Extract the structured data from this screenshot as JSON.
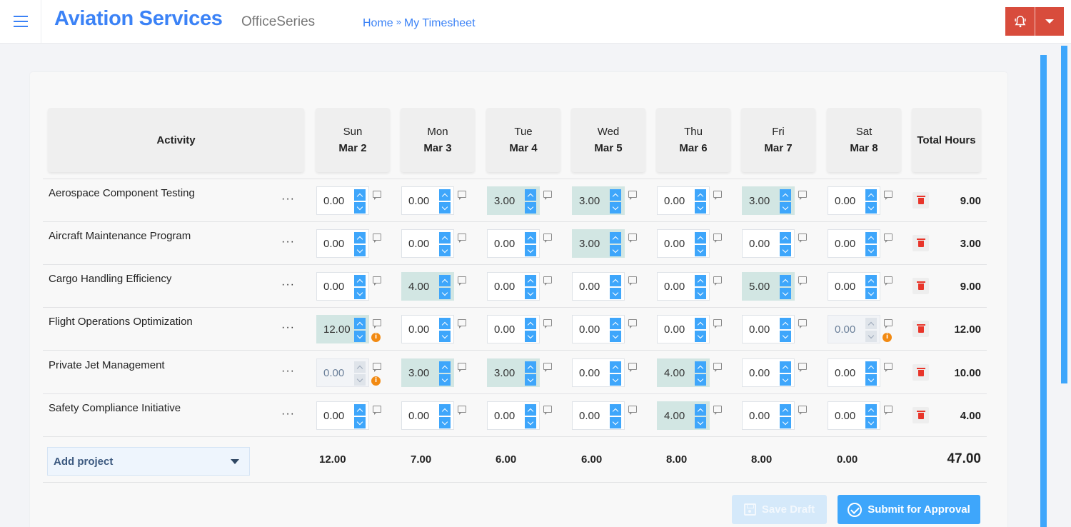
{
  "header": {
    "menu_icon": "hamburger-icon",
    "brand": "Aviation Services",
    "subbrand": "OfficeSeries",
    "breadcrumb": {
      "home": "Home",
      "separator": "»",
      "current": "My Timesheet"
    },
    "alert_icon": "bell-alert-icon",
    "dropdown_icon": "caret-down-icon",
    "alert_color": "#d84c3c"
  },
  "table": {
    "activity_header": "Activity",
    "total_header": "Total Hours",
    "days": [
      {
        "day": "Sun",
        "date": "Mar 2"
      },
      {
        "day": "Mon",
        "date": "Mar 3"
      },
      {
        "day": "Tue",
        "date": "Mar 4"
      },
      {
        "day": "Wed",
        "date": "Mar 5"
      },
      {
        "day": "Thu",
        "date": "Mar 6"
      },
      {
        "day": "Fri",
        "date": "Mar 7"
      },
      {
        "day": "Sat",
        "date": "Mar 8"
      }
    ],
    "rows": [
      {
        "activity": "Aerospace Component Testing",
        "menu": "···",
        "hours": [
          "0.00",
          "0.00",
          "3.00",
          "3.00",
          "0.00",
          "3.00",
          "0.00"
        ],
        "total": "9.00"
      },
      {
        "activity": "Aircraft Maintenance Program",
        "menu": "···",
        "hours": [
          "0.00",
          "0.00",
          "0.00",
          "3.00",
          "0.00",
          "0.00",
          "0.00"
        ],
        "total": "3.00"
      },
      {
        "activity": "Cargo Handling Efficiency",
        "menu": "···",
        "hours": [
          "0.00",
          "4.00",
          "0.00",
          "0.00",
          "0.00",
          "5.00",
          "0.00"
        ],
        "total": "9.00"
      },
      {
        "activity": "Flight Operations Optimization",
        "menu": "···",
        "hours": [
          "12.00",
          "0.00",
          "0.00",
          "0.00",
          "0.00",
          "0.00",
          "0.00"
        ],
        "total": "12.00"
      },
      {
        "activity": "Private Jet Management",
        "menu": "···",
        "hours": [
          "0.00",
          "3.00",
          "3.00",
          "0.00",
          "4.00",
          "0.00",
          "0.00"
        ],
        "total": "10.00"
      },
      {
        "activity": "Safety Compliance Initiative",
        "menu": "···",
        "hours": [
          "0.00",
          "0.00",
          "0.00",
          "0.00",
          "4.00",
          "0.00",
          "0.00"
        ],
        "total": "4.00"
      }
    ],
    "day_totals": [
      "12.00",
      "7.00",
      "6.00",
      "6.00",
      "8.00",
      "8.00",
      "0.00"
    ],
    "grand_total": "47.00",
    "info_badge": "i"
  },
  "footer": {
    "add_project": "Add project",
    "save_draft": "Save Draft",
    "submit": "Submit for Approval",
    "accent_color": "#3ea6fb"
  }
}
